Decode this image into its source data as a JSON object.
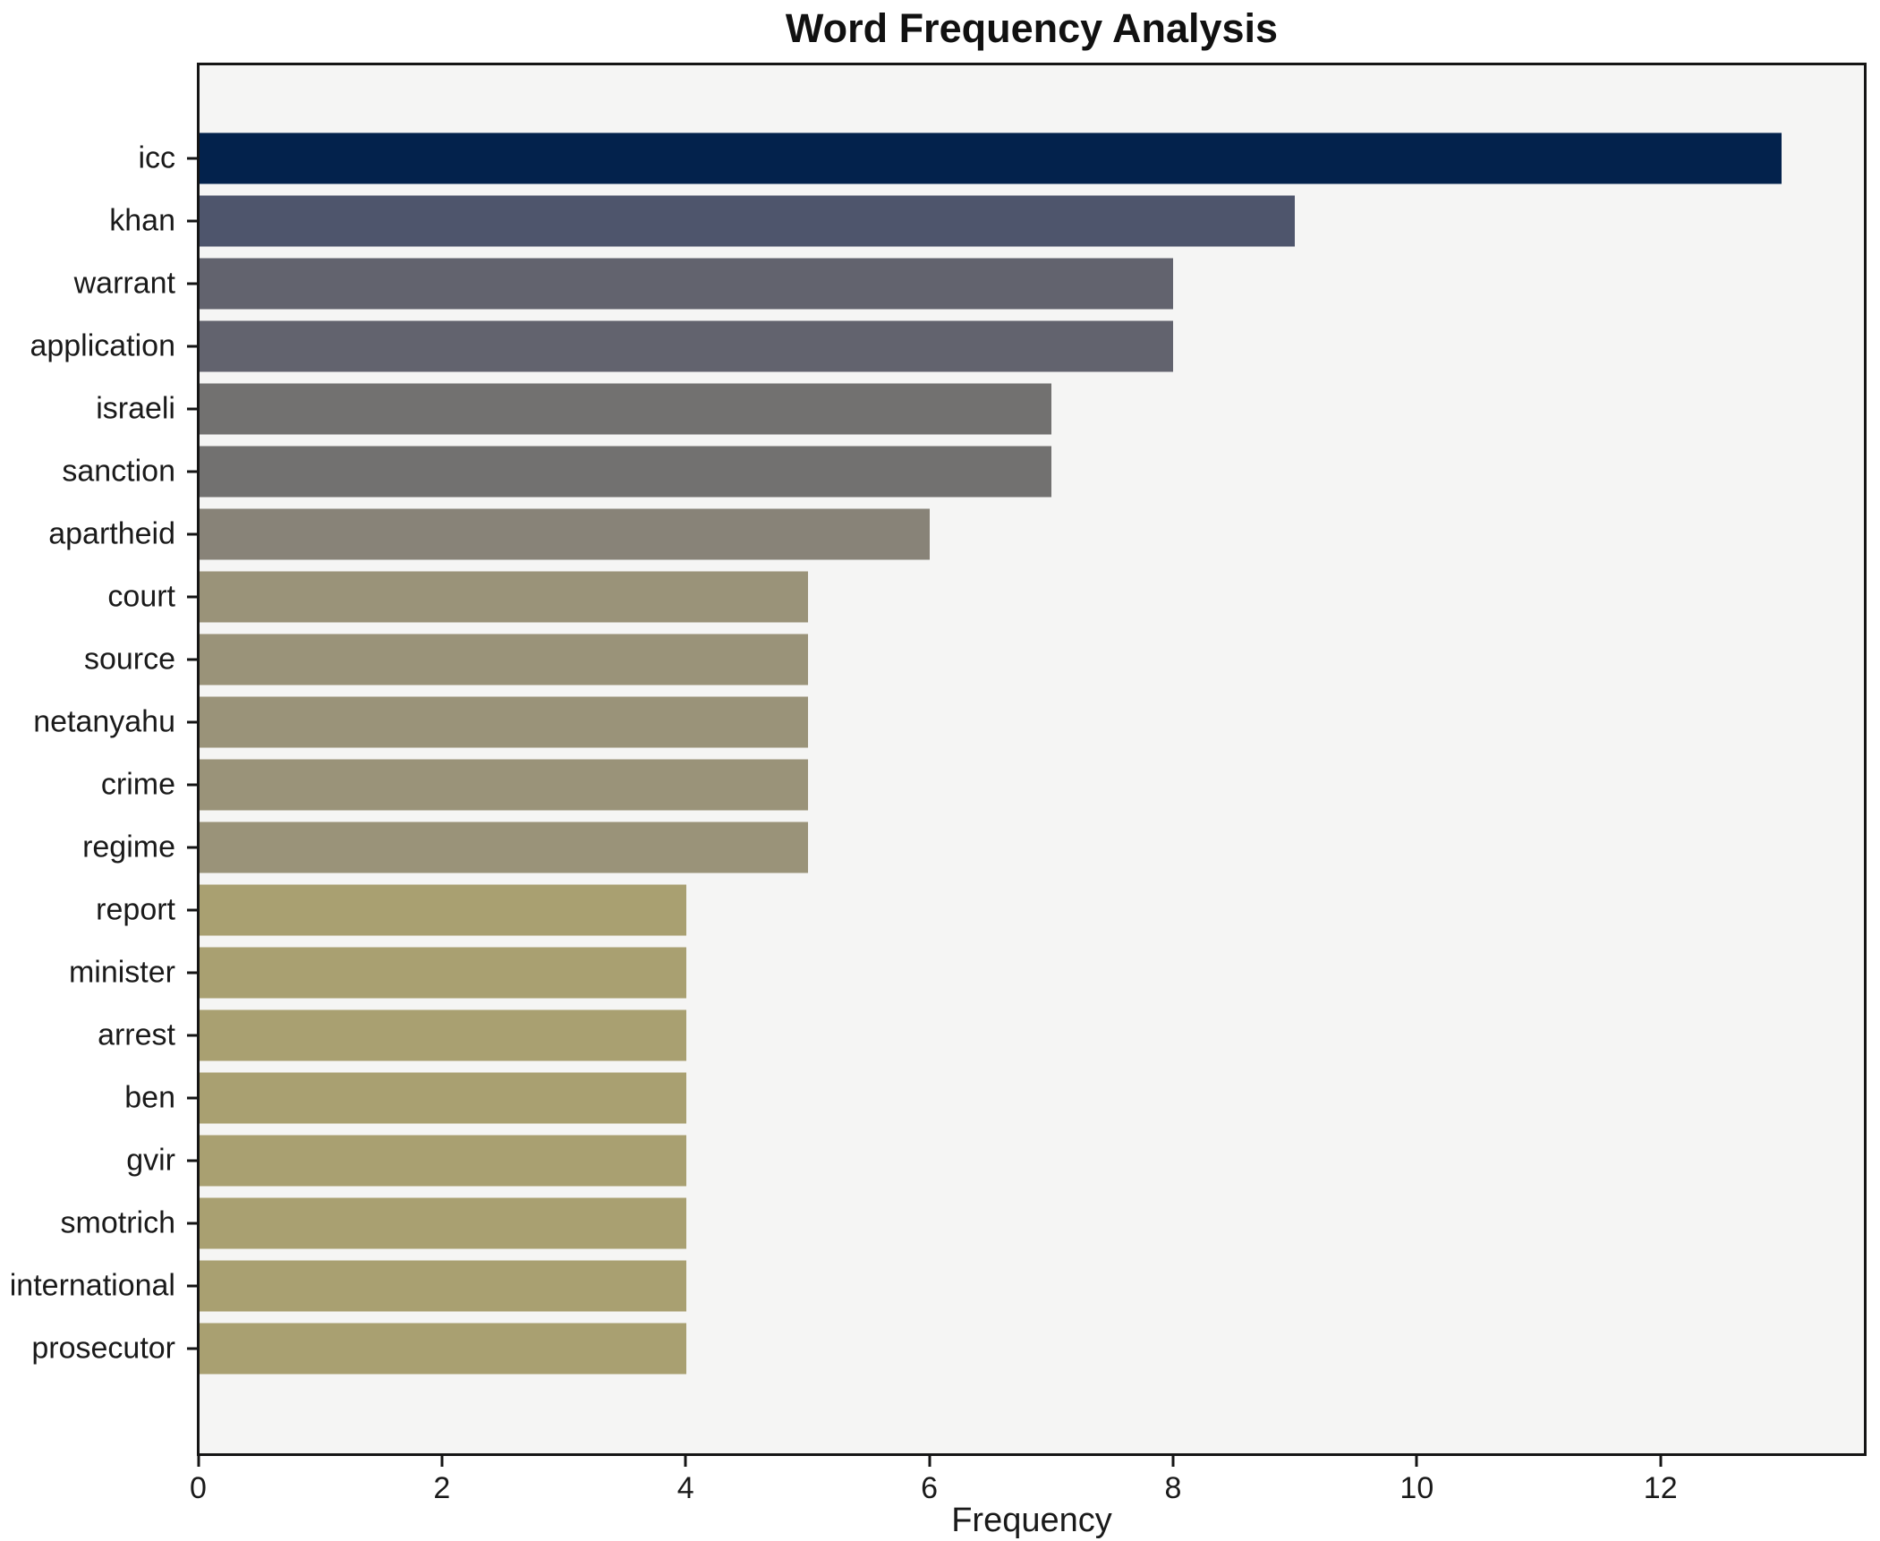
{
  "title": "Word Frequency Analysis",
  "xlabel": "Frequency",
  "colors": {
    "figure_bg": "#ffffff",
    "plot_bg": "#f5f5f4",
    "spine": "#151515",
    "text": "#1a1a1a"
  },
  "chart_data": {
    "type": "bar",
    "orientation": "horizontal",
    "title": "Word Frequency Analysis",
    "xlabel": "Frequency",
    "ylabel": "",
    "categories": [
      "icc",
      "khan",
      "warrant",
      "application",
      "israeli",
      "sanction",
      "apartheid",
      "court",
      "source",
      "netanyahu",
      "crime",
      "regime",
      "report",
      "minister",
      "arrest",
      "ben",
      "gvir",
      "smotrich",
      "international",
      "prosecutor"
    ],
    "values": [
      13,
      9,
      8,
      8,
      7,
      7,
      6,
      5,
      5,
      5,
      5,
      5,
      4,
      4,
      4,
      4,
      4,
      4,
      4,
      4
    ],
    "bar_colors": [
      "#03224c",
      "#4e556c",
      "#62636e",
      "#62636e",
      "#727170",
      "#727170",
      "#888378",
      "#9a9379",
      "#9a9379",
      "#9a9379",
      "#9a9379",
      "#9a9379",
      "#a9a071",
      "#a9a071",
      "#a9a071",
      "#a9a071",
      "#a9a071",
      "#a9a071",
      "#a9a071",
      "#a9a071"
    ],
    "xlim": [
      0,
      13.68
    ],
    "x_ticks": [
      0,
      2,
      4,
      6,
      8,
      10,
      12
    ],
    "grid": false,
    "legend": null,
    "bar_height_fraction": 0.8
  }
}
